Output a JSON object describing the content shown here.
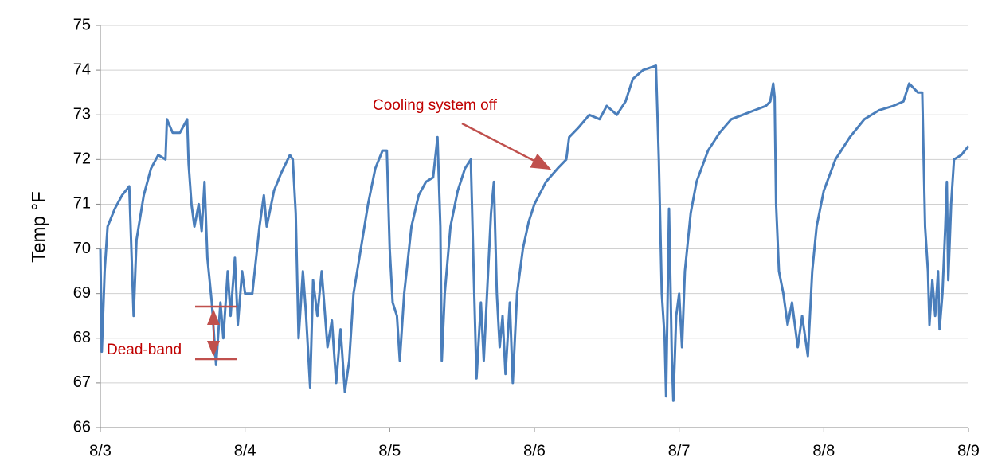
{
  "chart_data": {
    "type": "line",
    "y_label": "Temp °F",
    "annotations": [
      "Cooling system off",
      "Dead-band"
    ],
    "x": [
      0.0,
      0.01,
      0.03,
      0.05,
      0.1,
      0.15,
      0.2,
      0.23,
      0.25,
      0.3,
      0.35,
      0.4,
      0.45,
      0.46,
      0.5,
      0.55,
      0.6,
      0.61,
      0.63,
      0.65,
      0.68,
      0.7,
      0.72,
      0.74,
      0.77,
      0.8,
      0.83,
      0.85,
      0.88,
      0.9,
      0.93,
      0.95,
      0.98,
      1.0,
      1.05,
      1.1,
      1.13,
      1.15,
      1.2,
      1.25,
      1.31,
      1.33,
      1.35,
      1.37,
      1.4,
      1.42,
      1.45,
      1.47,
      1.5,
      1.53,
      1.57,
      1.6,
      1.63,
      1.66,
      1.69,
      1.72,
      1.75,
      1.8,
      1.85,
      1.9,
      1.95,
      1.98,
      2.0,
      2.02,
      2.05,
      2.07,
      2.1,
      2.15,
      2.2,
      2.25,
      2.3,
      2.33,
      2.35,
      2.36,
      2.38,
      2.42,
      2.47,
      2.52,
      2.56,
      2.58,
      2.6,
      2.63,
      2.65,
      2.68,
      2.7,
      2.72,
      2.74,
      2.76,
      2.78,
      2.8,
      2.83,
      2.85,
      2.88,
      2.92,
      2.96,
      3.0,
      3.08,
      3.16,
      3.22,
      3.24,
      3.3,
      3.38,
      3.45,
      3.5,
      3.57,
      3.63,
      3.68,
      3.75,
      3.84,
      3.86,
      3.88,
      3.9,
      3.91,
      3.93,
      3.95,
      3.96,
      3.98,
      4.0,
      4.02,
      4.04,
      4.08,
      4.12,
      4.2,
      4.28,
      4.36,
      4.44,
      4.52,
      4.6,
      4.63,
      4.65,
      4.66,
      4.67,
      4.69,
      4.72,
      4.75,
      4.78,
      4.82,
      4.85,
      4.89,
      4.92,
      4.95,
      5.0,
      5.08,
      5.18,
      5.28,
      5.38,
      5.48,
      5.55,
      5.59,
      5.65,
      5.68,
      5.7,
      5.72,
      5.73,
      5.75,
      5.77,
      5.79,
      5.8,
      5.82,
      5.84,
      5.85,
      5.86,
      5.88,
      5.9,
      5.95,
      6.0
    ],
    "series": [
      {
        "color": "#4a7ebb",
        "values": [
          70.0,
          67.7,
          69.5,
          70.5,
          70.9,
          71.2,
          71.4,
          68.5,
          70.2,
          71.2,
          71.8,
          72.1,
          72.0,
          72.9,
          72.6,
          72.6,
          72.9,
          71.9,
          71.0,
          70.5,
          71.0,
          70.4,
          71.5,
          69.8,
          68.8,
          67.4,
          68.8,
          68.0,
          69.5,
          68.5,
          69.8,
          68.3,
          69.5,
          69.0,
          69.0,
          70.5,
          71.2,
          70.5,
          71.3,
          71.7,
          72.1,
          72.0,
          70.8,
          68.0,
          69.5,
          68.6,
          66.9,
          69.3,
          68.5,
          69.5,
          67.8,
          68.4,
          67.0,
          68.2,
          66.8,
          67.5,
          69.0,
          70.0,
          71.0,
          71.8,
          72.2,
          72.2,
          70.0,
          68.8,
          68.5,
          67.5,
          69.0,
          70.5,
          71.2,
          71.5,
          71.6,
          72.5,
          70.5,
          67.5,
          69.0,
          70.5,
          71.3,
          71.8,
          72.0,
          69.5,
          67.1,
          68.8,
          67.5,
          69.5,
          70.8,
          71.5,
          69.0,
          67.8,
          68.5,
          67.2,
          68.8,
          67.0,
          69.0,
          70.0,
          70.6,
          71.0,
          71.5,
          71.8,
          72.0,
          72.5,
          72.7,
          73.0,
          72.9,
          73.2,
          73.0,
          73.3,
          73.8,
          74.0,
          74.1,
          72.0,
          69.0,
          68.0,
          66.7,
          70.9,
          67.5,
          66.6,
          68.5,
          69.0,
          67.8,
          69.5,
          70.8,
          71.5,
          72.2,
          72.6,
          72.9,
          73.0,
          73.1,
          73.2,
          73.3,
          73.7,
          73.4,
          71.0,
          69.5,
          69.0,
          68.3,
          68.8,
          67.8,
          68.5,
          67.6,
          69.5,
          70.5,
          71.3,
          72.0,
          72.5,
          72.9,
          73.1,
          73.2,
          73.3,
          73.7,
          73.5,
          73.5,
          70.5,
          69.5,
          68.3,
          69.3,
          68.5,
          69.5,
          68.2,
          69.0,
          70.5,
          71.5,
          69.3,
          71.0,
          72.0,
          72.1,
          72.3
        ]
      }
    ],
    "xlim": [
      0,
      6
    ],
    "xticks": [
      {
        "value": 0,
        "label": "8/3"
      },
      {
        "value": 1,
        "label": "8/4"
      },
      {
        "value": 2,
        "label": "8/5"
      },
      {
        "value": 3,
        "label": "8/6"
      },
      {
        "value": 4,
        "label": "8/7"
      },
      {
        "value": 5,
        "label": "8/8"
      },
      {
        "value": 6,
        "label": "8/9"
      }
    ],
    "ylim": [
      66,
      75
    ],
    "yticks": [
      66,
      67,
      68,
      69,
      70,
      71,
      72,
      73,
      74,
      75
    ],
    "grid": true
  }
}
